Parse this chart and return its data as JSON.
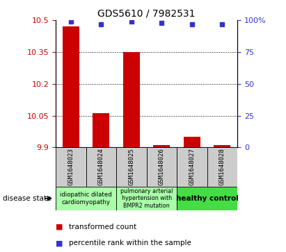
{
  "title": "GDS5610 / 7982531",
  "samples": [
    "GSM1648023",
    "GSM1648024",
    "GSM1648025",
    "GSM1648026",
    "GSM1648027",
    "GSM1648028"
  ],
  "transformed_count": [
    10.47,
    10.06,
    10.35,
    9.91,
    9.95,
    9.91
  ],
  "percentile_rank": [
    99,
    97,
    99,
    98,
    97,
    97
  ],
  "ylim_left": [
    9.9,
    10.5
  ],
  "ylim_right": [
    0,
    100
  ],
  "yticks_left": [
    9.9,
    10.05,
    10.2,
    10.35,
    10.5
  ],
  "yticks_right": [
    0,
    25,
    50,
    75,
    100
  ],
  "ytick_labels_left": [
    "9.9",
    "10.05",
    "10.2",
    "10.35",
    "10.5"
  ],
  "ytick_labels_right": [
    "0",
    "25",
    "50",
    "75",
    "100%"
  ],
  "hlines": [
    10.05,
    10.2,
    10.35
  ],
  "bar_color": "#cc0000",
  "dot_color": "#3333cc",
  "bar_bottom": 9.9,
  "legend_red_label": "transformed count",
  "legend_blue_label": "percentile rank within the sample",
  "disease_state_label": "disease state",
  "axis_label_color_left": "#cc0000",
  "axis_label_color_right": "#3333cc",
  "bg_color_samples": "#cccccc",
  "bg_color_disease_light": "#aaffaa",
  "bg_color_disease_bright": "#44dd44",
  "group1_label": "idiopathic dilated\ncardiomyopathy",
  "group2_label": "pulmonary arterial\nhypertension with\nBMPR2 mutation",
  "group3_label": "healthy control"
}
